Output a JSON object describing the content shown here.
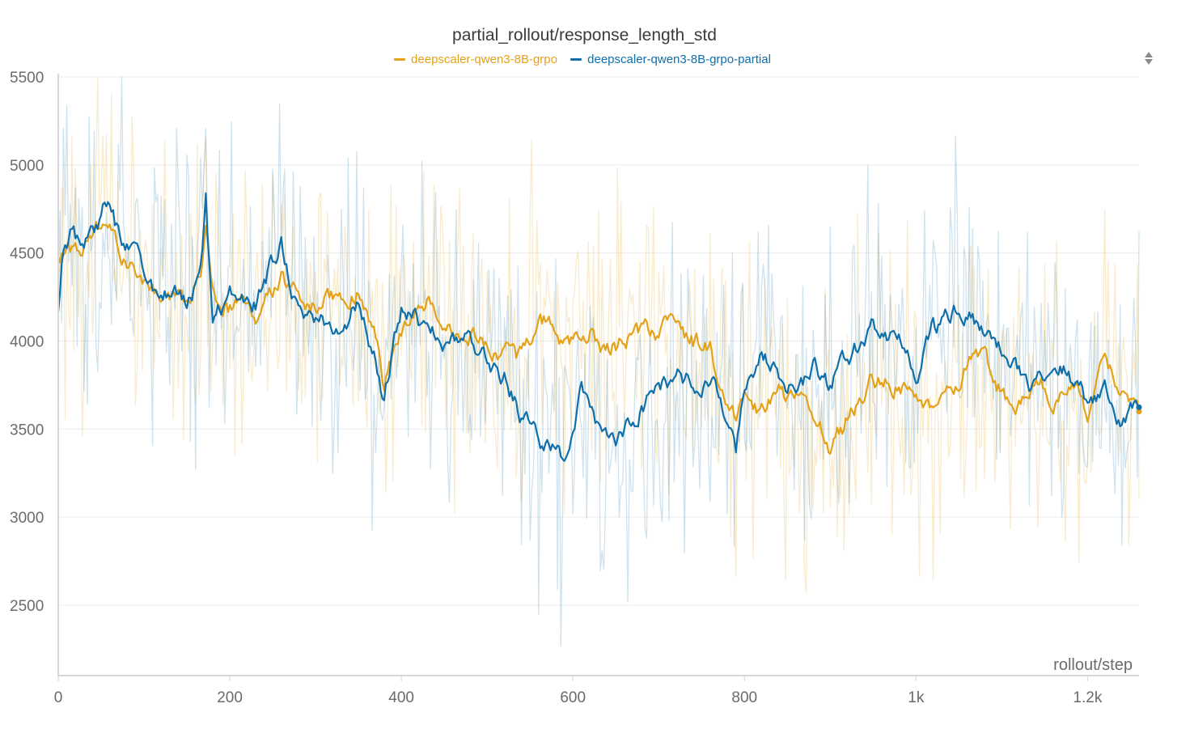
{
  "chart_data": {
    "type": "line",
    "title": "partial_rollout/response_length_std",
    "xlabel": "rollout/step",
    "ylabel": "",
    "xlim": [
      0,
      1260
    ],
    "ylim": [
      2100,
      5500
    ],
    "x_ticks": [
      {
        "value": 0,
        "label": "0"
      },
      {
        "value": 200,
        "label": "200"
      },
      {
        "value": 400,
        "label": "400"
      },
      {
        "value": 600,
        "label": "600"
      },
      {
        "value": 800,
        "label": "800"
      },
      {
        "value": 1000,
        "label": "1k"
      },
      {
        "value": 1200,
        "label": "1.2k"
      }
    ],
    "y_ticks": [
      {
        "value": 2500,
        "label": "2500"
      },
      {
        "value": 3000,
        "label": "3000"
      },
      {
        "value": 3500,
        "label": "3500"
      },
      {
        "value": 4000,
        "label": "4000"
      },
      {
        "value": 4500,
        "label": "4500"
      },
      {
        "value": 5000,
        "label": "5000"
      },
      {
        "value": 5500,
        "label": "5500"
      }
    ],
    "grid": true,
    "legend_position": "top-center",
    "raw_noise_amplitude": 420,
    "series": [
      {
        "name": "deepscaler-qwen3-8B-grpo",
        "color": "#e3a21a",
        "x": [
          0,
          20,
          40,
          55,
          70,
          90,
          110,
          130,
          150,
          165,
          172,
          180,
          200,
          230,
          260,
          280,
          300,
          330,
          350,
          370,
          380,
          400,
          430,
          450,
          480,
          500,
          520,
          540,
          560,
          590,
          620,
          640,
          660,
          690,
          720,
          740,
          760,
          780,
          790,
          800,
          820,
          840,
          860,
          880,
          900,
          920,
          950,
          980,
          1000,
          1020,
          1050,
          1070,
          1090,
          1110,
          1140,
          1160,
          1180,
          1200,
          1220,
          1240,
          1260
        ],
        "values": [
          4500,
          4520,
          4550,
          4700,
          4550,
          4400,
          4300,
          4250,
          4200,
          4350,
          4600,
          4300,
          4200,
          4150,
          4350,
          4250,
          4200,
          4250,
          4300,
          4050,
          3750,
          4050,
          4250,
          4100,
          4050,
          4000,
          3950,
          3900,
          4150,
          4000,
          4050,
          3950,
          4000,
          4050,
          4100,
          4000,
          3950,
          3650,
          3600,
          3750,
          3600,
          3700,
          3650,
          3600,
          3400,
          3550,
          3800,
          3750,
          3700,
          3600,
          3800,
          3950,
          3800,
          3600,
          3800,
          3700,
          3750,
          3600,
          3850,
          3700,
          3580
        ]
      },
      {
        "name": "deepscaler-qwen3-8B-grpo-partial",
        "color": "#0f6fab",
        "x": [
          0,
          5,
          15,
          30,
          45,
          55,
          70,
          90,
          110,
          130,
          150,
          165,
          172,
          180,
          200,
          230,
          260,
          280,
          300,
          330,
          350,
          370,
          380,
          400,
          430,
          450,
          480,
          500,
          520,
          540,
          560,
          590,
          610,
          625,
          650,
          670,
          690,
          720,
          740,
          760,
          780,
          790,
          800,
          820,
          840,
          860,
          880,
          900,
          920,
          950,
          980,
          1000,
          1020,
          1050,
          1070,
          1090,
          1110,
          1140,
          1160,
          1180,
          1200,
          1220,
          1240,
          1260
        ],
        "values": [
          4150,
          4450,
          4600,
          4550,
          4650,
          4800,
          4600,
          4450,
          4300,
          4250,
          4250,
          4350,
          4800,
          4100,
          4250,
          4200,
          4550,
          4150,
          4100,
          4100,
          4200,
          3900,
          3650,
          4200,
          4050,
          4000,
          4000,
          3900,
          3800,
          3550,
          3450,
          3350,
          3700,
          3550,
          3450,
          3550,
          3700,
          3800,
          3750,
          3800,
          3600,
          3400,
          3700,
          3950,
          3800,
          3700,
          3850,
          3750,
          3900,
          4100,
          4000,
          3800,
          4050,
          4200,
          4100,
          3950,
          3900,
          3700,
          3950,
          3800,
          3650,
          3750,
          3550,
          3650
        ]
      }
    ]
  }
}
